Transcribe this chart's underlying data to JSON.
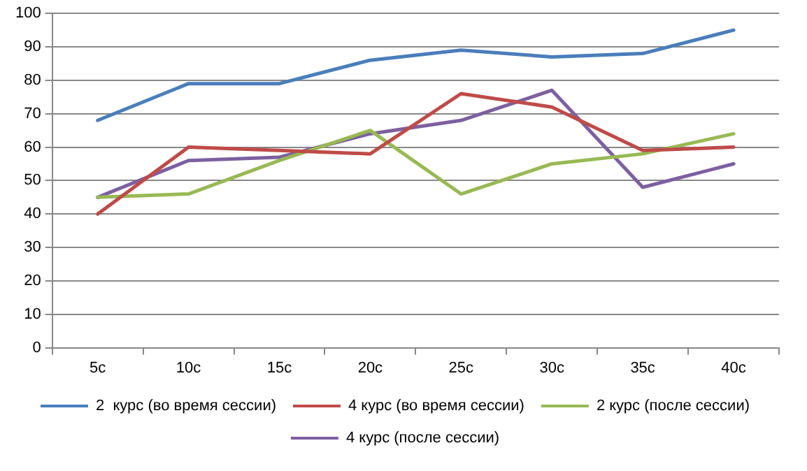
{
  "chart_data": {
    "type": "line",
    "categories": [
      "5c",
      "10c",
      "15c",
      "20c",
      "25c",
      "30c",
      "35c",
      "40c"
    ],
    "series": [
      {
        "name": "2  курс (во время сессии)",
        "color": "#4a7ebb",
        "values": [
          68,
          79,
          79,
          86,
          89,
          87,
          88,
          95
        ]
      },
      {
        "name": "4 курс (во время сессии)",
        "color": "#be4b48",
        "values": [
          40,
          60,
          59,
          58,
          76,
          72,
          59,
          60
        ]
      },
      {
        "name": "2 курс (после сессии)",
        "color": "#98b954",
        "values": [
          45,
          46,
          56,
          65,
          46,
          55,
          58,
          64
        ]
      },
      {
        "name": "4 курс (после сессии)",
        "color": "#7d60a0",
        "values": [
          45,
          56,
          57,
          64,
          68,
          77,
          48,
          55
        ]
      }
    ],
    "ylim": [
      0,
      100
    ],
    "yticks": [
      0,
      10,
      20,
      30,
      40,
      50,
      60,
      70,
      80,
      90,
      100
    ],
    "grid": "y",
    "legend": "bottom",
    "marker": "none",
    "line_style": "solid"
  }
}
